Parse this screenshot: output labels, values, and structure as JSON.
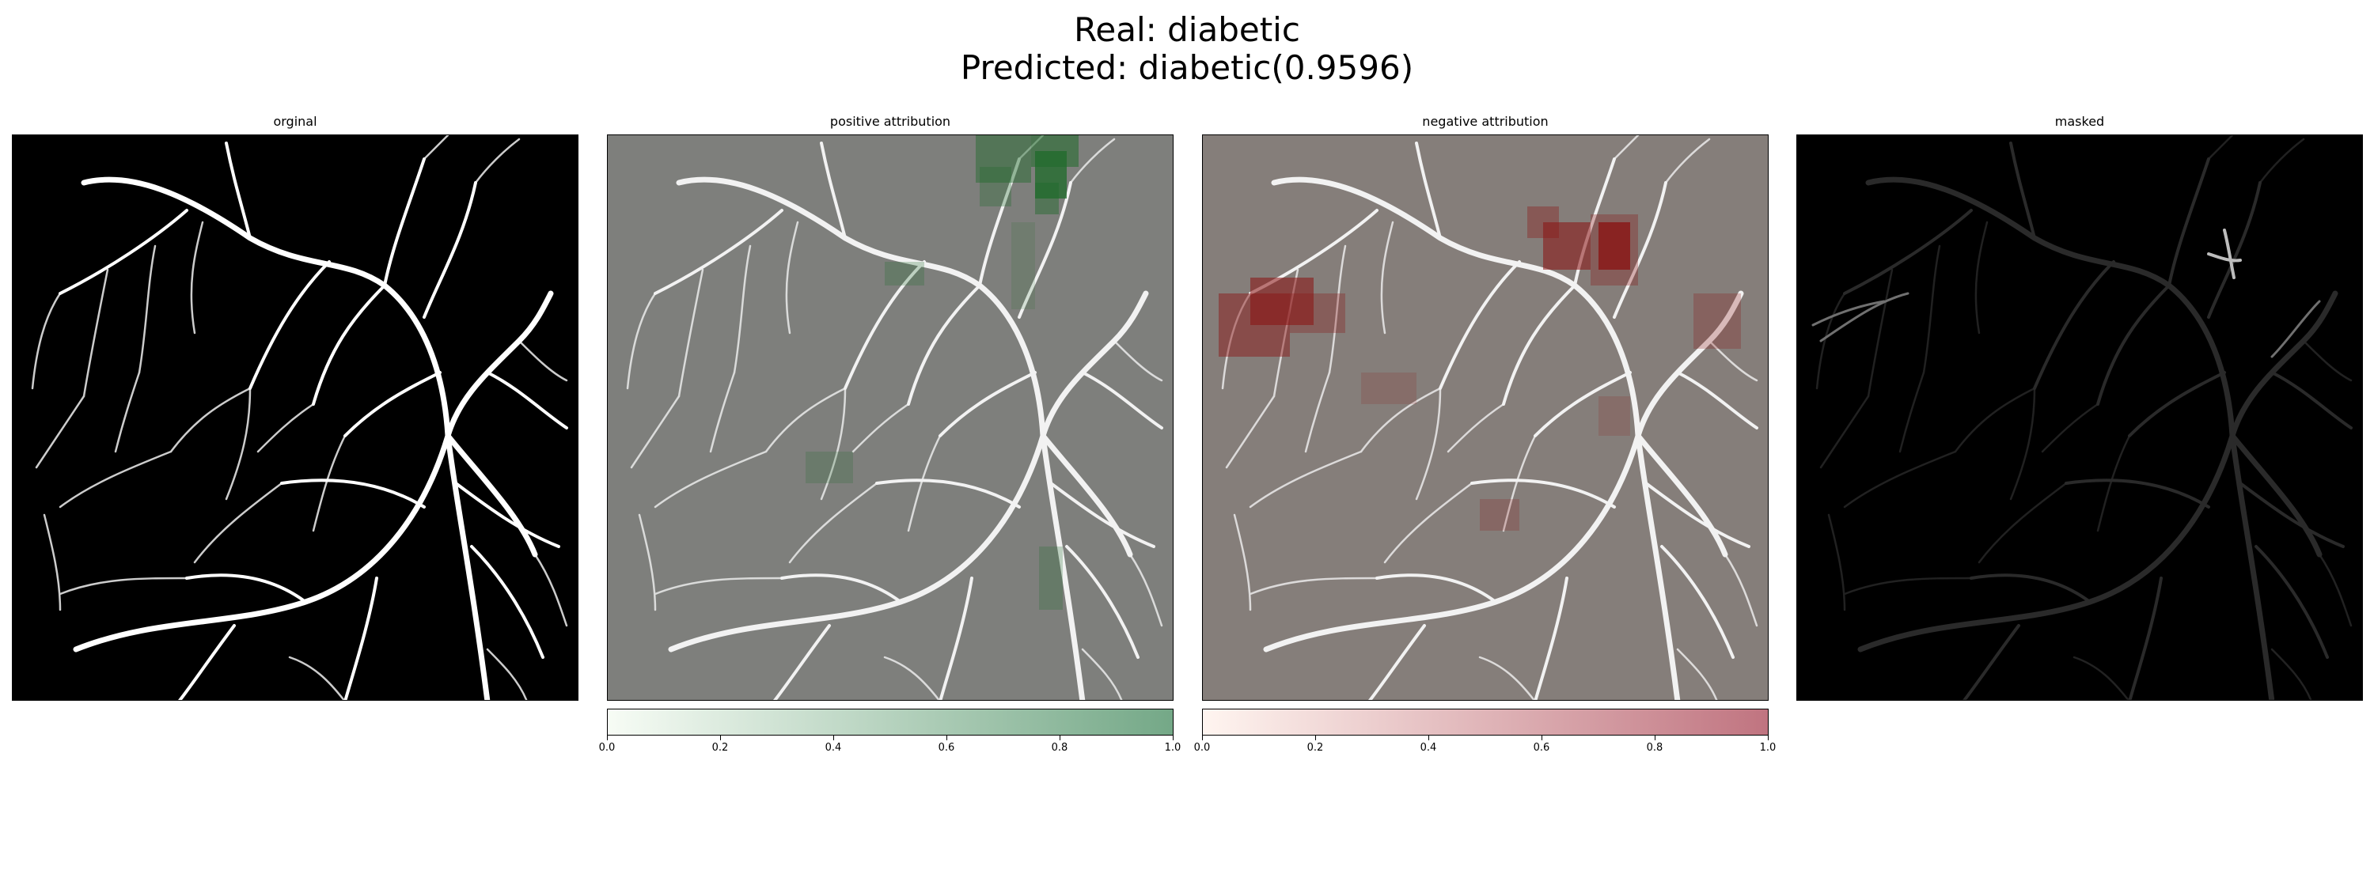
{
  "figure": {
    "title_line1": "Real: diabetic",
    "title_line2": "Predicted: diabetic(0.9596)"
  },
  "panels": [
    {
      "title": "orginal",
      "type": "grayscale"
    },
    {
      "title": "positive attribution",
      "type": "overlay",
      "overlay_color": "#2e7d32"
    },
    {
      "title": "negative attribution",
      "type": "overlay",
      "overlay_color": "#b71c1c"
    },
    {
      "title": "masked",
      "type": "masked"
    }
  ],
  "colorbars": [
    {
      "colormap": "white-to-green",
      "color_low": "#f7fcf5",
      "color_high": "#74a887",
      "ticks": [
        "0.0",
        "0.2",
        "0.4",
        "0.6",
        "0.8",
        "1.0"
      ]
    },
    {
      "colormap": "white-to-red",
      "color_low": "#fff5f0",
      "color_high": "#c07480",
      "ticks": [
        "0.0",
        "0.2",
        "0.4",
        "0.6",
        "0.8",
        "1.0"
      ]
    }
  ]
}
